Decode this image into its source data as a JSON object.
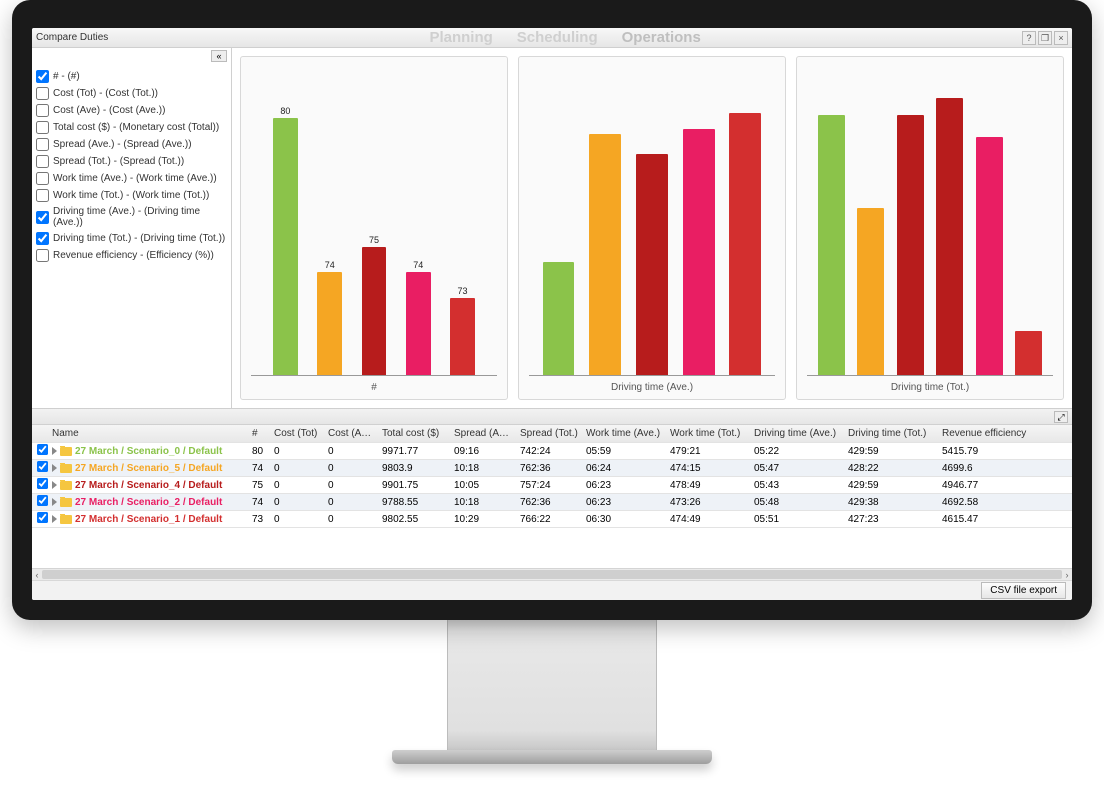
{
  "window": {
    "title": "Compare Duties",
    "nav": [
      "Planning",
      "Scheduling",
      "Operations"
    ],
    "nav_active_index": 2
  },
  "metrics": [
    {
      "label": "# - (#)",
      "checked": true
    },
    {
      "label": "Cost (Tot) - (Cost (Tot.))",
      "checked": false
    },
    {
      "label": "Cost (Ave) - (Cost (Ave.))",
      "checked": false
    },
    {
      "label": "Total cost ($) - (Monetary cost (Total))",
      "checked": false
    },
    {
      "label": "Spread (Ave.) - (Spread (Ave.))",
      "checked": false
    },
    {
      "label": "Spread (Tot.) - (Spread (Tot.))",
      "checked": false
    },
    {
      "label": "Work time (Ave.) - (Work time (Ave.))",
      "checked": false
    },
    {
      "label": "Work time (Tot.) - (Work time (Tot.))",
      "checked": false
    },
    {
      "label": "Driving time (Ave.) - (Driving time (Ave.))",
      "checked": true
    },
    {
      "label": "Driving time (Tot.) - (Driving time (Tot.))",
      "checked": true
    },
    {
      "label": "Revenue efficiency - (Efficiency (%))",
      "checked": false
    }
  ],
  "series_colors": [
    "#8bc34a",
    "#f5a623",
    "#b71c1c",
    "#e91e63",
    "#d32f2f"
  ],
  "charts": [
    {
      "title": "#",
      "type": "bar",
      "show_value_labels": true,
      "values": [
        80,
        74,
        75,
        74,
        73
      ],
      "ylim": [
        70,
        82
      ],
      "bar_width_pct": 10,
      "gap_pct": 8,
      "background": "#fafafa",
      "baseline": "#999999"
    },
    {
      "title": "Driving time (Ave.)",
      "type": "bar",
      "show_value_labels": false,
      "values": [
        22,
        47,
        43,
        48,
        51
      ],
      "ylim": [
        0,
        60
      ],
      "bar_width_pct": 13,
      "gap_pct": 6,
      "background": "#fafafa",
      "baseline": "#999999"
    },
    {
      "title": "Driving time (Tot.)",
      "type": "bar",
      "show_value_labels": false,
      "values": [
        59,
        38,
        59,
        63,
        54,
        10
      ],
      "colors_override": [
        "#8bc34a",
        "#f5a623",
        "#b71c1c",
        "#b71c1c",
        "#e91e63",
        "#d32f2f"
      ],
      "ylim": [
        0,
        70
      ],
      "bar_width_pct": 11,
      "gap_pct": 5,
      "background": "#fafafa",
      "baseline": "#999999"
    }
  ],
  "table": {
    "columns": [
      "",
      "Name",
      "#",
      "Cost (Tot)",
      "Cost (Ave)",
      "Total cost ($)",
      "Spread (Ave.)",
      "Spread (Tot.)",
      "Work time (Ave.)",
      "Work time (Tot.)",
      "Driving time (Ave.)",
      "Driving time (Tot.)",
      "Revenue efficiency"
    ],
    "rows": [
      {
        "name": "27 March / Scenario_0 / Default",
        "color": "#8bc34a",
        "num": "80",
        "ct": "0",
        "ca": "0",
        "tc": "9971.77",
        "sa": "09:16",
        "st": "742:24",
        "wa": "05:59",
        "wt": "479:21",
        "da": "05:22",
        "dt": "429:59",
        "re": "5415.79"
      },
      {
        "name": "27 March / Scenario_5 / Default",
        "color": "#f5a623",
        "num": "74",
        "ct": "0",
        "ca": "0",
        "tc": "9803.9",
        "sa": "10:18",
        "st": "762:36",
        "wa": "06:24",
        "wt": "474:15",
        "da": "05:47",
        "dt": "428:22",
        "re": "4699.6"
      },
      {
        "name": "27 March / Scenario_4 / Default",
        "color": "#b71c1c",
        "num": "75",
        "ct": "0",
        "ca": "0",
        "tc": "9901.75",
        "sa": "10:05",
        "st": "757:24",
        "wa": "06:23",
        "wt": "478:49",
        "da": "05:43",
        "dt": "429:59",
        "re": "4946.77"
      },
      {
        "name": "27 March / Scenario_2 / Default",
        "color": "#e91e63",
        "num": "74",
        "ct": "0",
        "ca": "0",
        "tc": "9788.55",
        "sa": "10:18",
        "st": "762:36",
        "wa": "06:23",
        "wt": "473:26",
        "da": "05:48",
        "dt": "429:38",
        "re": "4692.58"
      },
      {
        "name": "27 March / Scenario_1 / Default",
        "color": "#d32f2f",
        "num": "73",
        "ct": "0",
        "ca": "0",
        "tc": "9802.55",
        "sa": "10:29",
        "st": "766:22",
        "wa": "06:30",
        "wt": "474:49",
        "da": "05:51",
        "dt": "427:23",
        "re": "4615.47"
      }
    ]
  },
  "footer": {
    "export_label": "CSV file export"
  }
}
